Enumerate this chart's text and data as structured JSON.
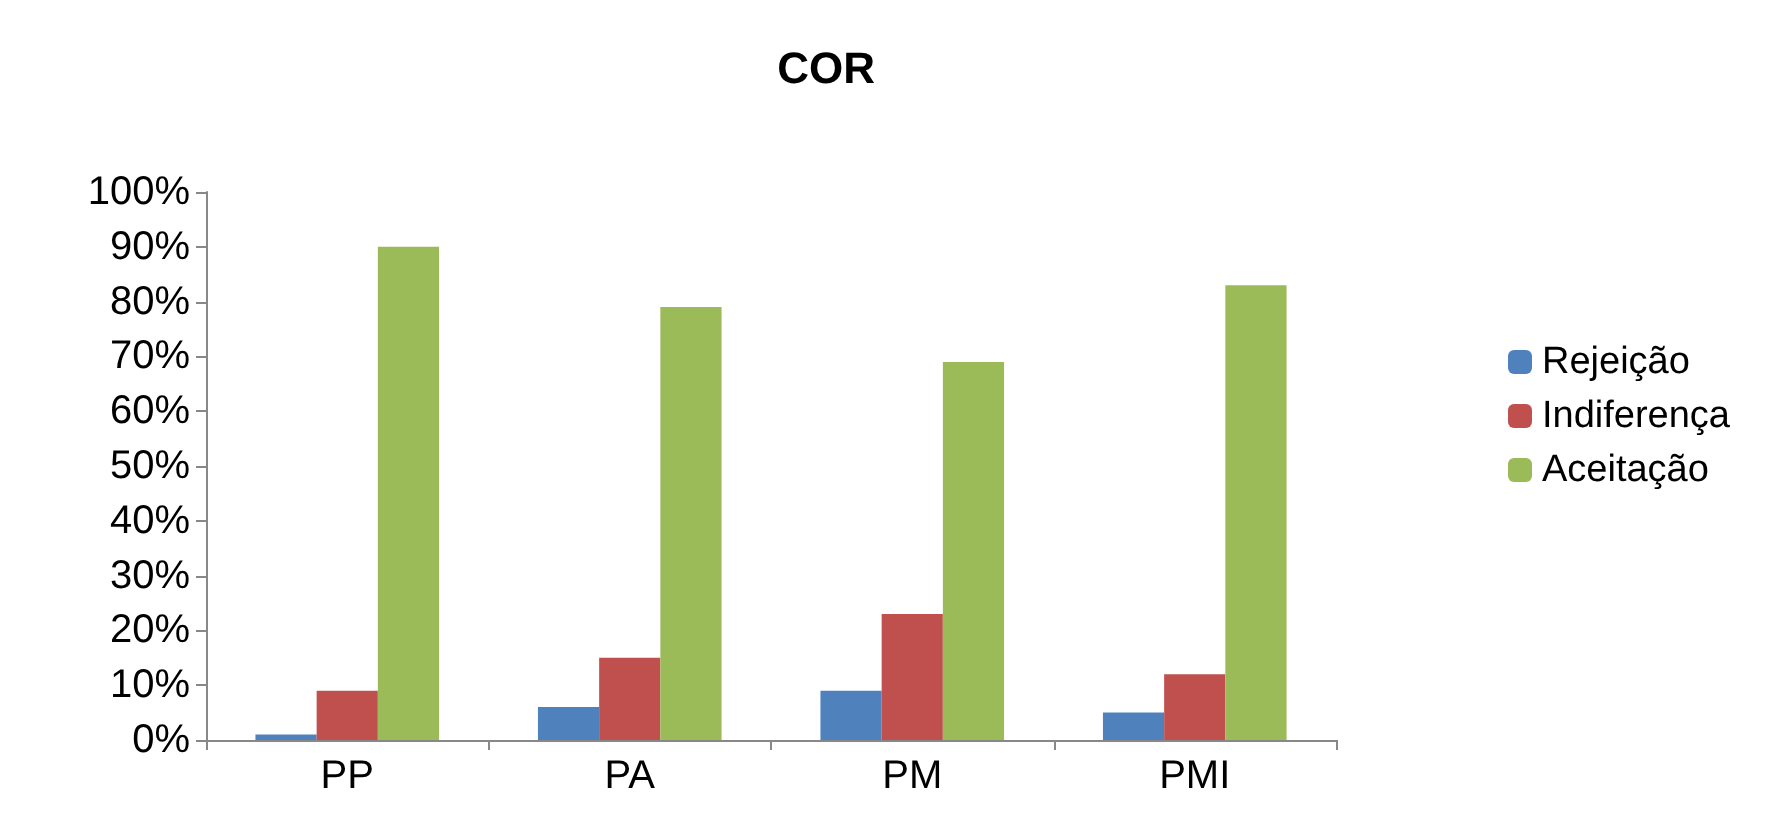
{
  "chart_data": {
    "type": "bar",
    "title": "COR",
    "categories": [
      "PP",
      "PA",
      "PM",
      "PMI"
    ],
    "series": [
      {
        "name": "Rejeição",
        "color": "#4f81bd",
        "values": [
          1,
          6,
          9,
          5
        ]
      },
      {
        "name": "Indiferença",
        "color": "#c0504d",
        "values": [
          9,
          15,
          23,
          12
        ]
      },
      {
        "name": "Aceitação",
        "color": "#9bbb59",
        "values": [
          90,
          79,
          69,
          83
        ]
      }
    ],
    "ylim": [
      0,
      100
    ],
    "yticks": [
      {
        "value": 0,
        "label": "0%"
      },
      {
        "value": 10,
        "label": "10%"
      },
      {
        "value": 20,
        "label": "20%"
      },
      {
        "value": 30,
        "label": "30%"
      },
      {
        "value": 40,
        "label": "40%"
      },
      {
        "value": 50,
        "label": "50%"
      },
      {
        "value": 60,
        "label": "60%"
      },
      {
        "value": 70,
        "label": "70%"
      },
      {
        "value": 80,
        "label": "80%"
      },
      {
        "value": 90,
        "label": "90%"
      },
      {
        "value": 100,
        "label": "100%"
      }
    ],
    "grid": false,
    "legend": "right"
  }
}
